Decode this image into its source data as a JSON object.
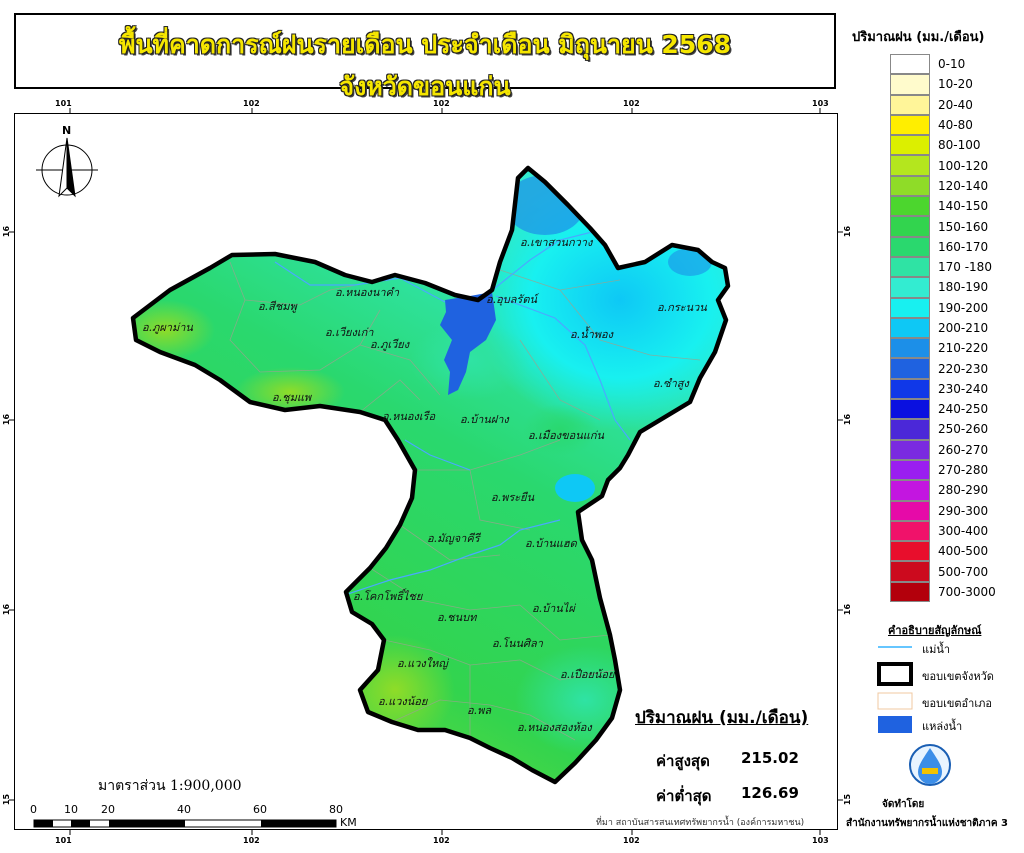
{
  "title": {
    "line1": "พื้นที่คาดการณ์ฝนรายเดือน ประจำเดือน มิถุนายน 2568",
    "line2": "จังหวัดขอนแก่น"
  },
  "grid_labels": {
    "top": [
      "101",
      "102",
      "102",
      "102",
      "103"
    ],
    "bottom": [
      "101",
      "102",
      "102",
      "102",
      "103"
    ],
    "left": [
      "16",
      "16",
      "16",
      "15"
    ],
    "right": [
      "16",
      "16",
      "16",
      "15"
    ]
  },
  "north_arrow": {
    "label": "N",
    "icon": "north-arrow-icon"
  },
  "districts": [
    {
      "name": "อ.เขาสวนกวาง"
    },
    {
      "name": "อ.หนองนาคำ"
    },
    {
      "name": "อ.สีชมพู"
    },
    {
      "name": "อ.ภูผาม่าน"
    },
    {
      "name": "อ.อุบลรัตน์"
    },
    {
      "name": "อ.กระนวน"
    },
    {
      "name": "อ.เวียงเก่า"
    },
    {
      "name": "อ.ภูเวียง"
    },
    {
      "name": "อ.น้ำพอง"
    },
    {
      "name": "อ.ซำสูง"
    },
    {
      "name": "อ.ชุมแพ"
    },
    {
      "name": "อ.หนองเรือ"
    },
    {
      "name": "อ.บ้านฝาง"
    },
    {
      "name": "อ.เมืองขอนแก่น"
    },
    {
      "name": "อ.พระยืน"
    },
    {
      "name": "อ.มัญจาคีรี"
    },
    {
      "name": "อ.บ้านแฮด"
    },
    {
      "name": "อ.โคกโพธิ์ไชย"
    },
    {
      "name": "อ.ชนบท"
    },
    {
      "name": "อ.บ้านไผ่"
    },
    {
      "name": "อ.โนนศิลา"
    },
    {
      "name": "อ.แวงใหญ่"
    },
    {
      "name": "อ.เปือยน้อย"
    },
    {
      "name": "อ.แวงน้อย"
    },
    {
      "name": "อ.พล"
    },
    {
      "name": "อ.หนองสองห้อง"
    }
  ],
  "legend": {
    "title": "ปริมาณฝน (มม./เดือน)",
    "classes": [
      {
        "label": "0-10",
        "color": "#ffffff"
      },
      {
        "label": "10-20",
        "color": "#fffbcc"
      },
      {
        "label": "20-40",
        "color": "#fff599"
      },
      {
        "label": "40-80",
        "color": "#ffee00"
      },
      {
        "label": "80-100",
        "color": "#dcef00"
      },
      {
        "label": "100-120",
        "color": "#b4e61e"
      },
      {
        "label": "120-140",
        "color": "#8fdc28"
      },
      {
        "label": "140-150",
        "color": "#4cd62e"
      },
      {
        "label": "150-160",
        "color": "#32d44e"
      },
      {
        "label": "160-170",
        "color": "#2ad86e"
      },
      {
        "label": "170 -180",
        "color": "#2fe3a4"
      },
      {
        "label": "180-190",
        "color": "#33ecd1"
      },
      {
        "label": "190-200",
        "color": "#18f0f0"
      },
      {
        "label": "200-210",
        "color": "#0ec8f5"
      },
      {
        "label": "210-220",
        "color": "#1c8fe8"
      },
      {
        "label": "220-230",
        "color": "#1f62e0"
      },
      {
        "label": "230-240",
        "color": "#1038e8"
      },
      {
        "label": "240-250",
        "color": "#0a10e0"
      },
      {
        "label": "250-260",
        "color": "#4b28d8"
      },
      {
        "label": "260-270",
        "color": "#7a2ae0"
      },
      {
        "label": "270-280",
        "color": "#9a1ef0"
      },
      {
        "label": "280-290",
        "color": "#c316e0"
      },
      {
        "label": "290-300",
        "color": "#e60aa8"
      },
      {
        "label": "300-400",
        "color": "#f0126a"
      },
      {
        "label": "400-500",
        "color": "#e80e2c"
      },
      {
        "label": "500-700",
        "color": "#cc0a1e"
      },
      {
        "label": "700-3000",
        "color": "#b3000c"
      }
    ]
  },
  "symbols": {
    "title": "คำอธิบายสัญลักษณ์",
    "items": [
      {
        "label": "แม่น้ำ",
        "icon": "river-line-icon"
      },
      {
        "label": "ขอบเขตจังหวัด",
        "icon": "province-boundary-icon"
      },
      {
        "label": "ขอบเขตอำเภอ",
        "icon": "district-boundary-icon"
      },
      {
        "label": "แหล่งน้ำ",
        "icon": "water-body-icon"
      }
    ]
  },
  "stats": {
    "title": "ปริมาณฝน (มม./เดือน)",
    "max_label": "ค่าสูงสุด",
    "max_value": "215.02",
    "min_label": "ค่าต่ำสุด",
    "min_value": "126.69"
  },
  "scale": {
    "text": "มาตราส่วน 1:900,000",
    "ticks": [
      "0",
      "10",
      "20",
      "40",
      "60",
      "80"
    ],
    "unit": "KM"
  },
  "footer": {
    "source": "ที่มา  สถาบันสารสนเทศทรัพยากรน้ำ (องค์การมหาชน)",
    "made_by": "จัดทำโดย",
    "org": "สำนักงานทรัพยากรน้ำแห่งชาติภาค 3",
    "logo_icon": "onwr-logo-icon"
  }
}
